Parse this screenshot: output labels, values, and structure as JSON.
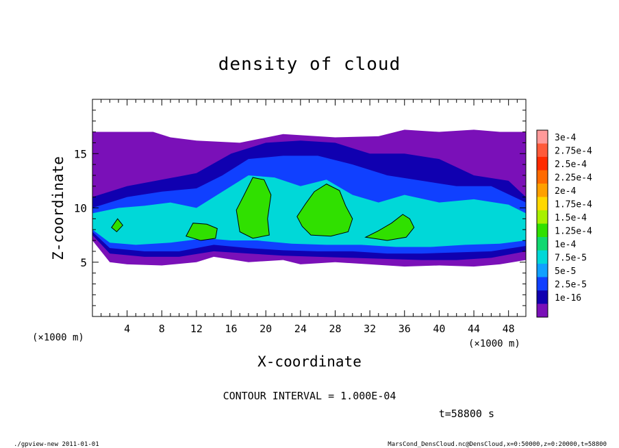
{
  "chart_data": {
    "type": "heatmap",
    "title": "density of cloud",
    "xlabel": "X-coordinate",
    "ylabel": "Z-coordinate",
    "x_unit_left": "(×1000 m)",
    "x_unit_right": "(×1000 m)",
    "xlim": [
      0,
      50
    ],
    "ylim": [
      0,
      20
    ],
    "x_ticks": [
      4,
      8,
      12,
      16,
      20,
      24,
      28,
      32,
      36,
      40,
      44,
      48
    ],
    "y_ticks": [
      5,
      10,
      15
    ],
    "colorbar": {
      "labels": [
        "3e-4",
        "2.75e-4",
        "2.5e-4",
        "2.25e-4",
        "2e-4",
        "1.75e-4",
        "1.5e-4",
        "1.25e-4",
        "1e-4",
        "7.5e-5",
        "5e-5",
        "2.5e-5",
        "1e-16"
      ],
      "colors": [
        "#ff9a9a",
        "#ff5a3a",
        "#ff2a00",
        "#ff6a00",
        "#ffa000",
        "#ffd800",
        "#a8f000",
        "#30e000",
        "#10d870",
        "#00d8d8",
        "#10a0ff",
        "#1040ff",
        "#1000b0",
        "#7a10b8"
      ]
    },
    "cloud_layers": [
      {
        "level": "1e-16",
        "color": "#7a10b8",
        "top": [
          [
            0,
            17
          ],
          [
            7,
            17
          ],
          [
            9,
            16.5
          ],
          [
            12,
            16.2
          ],
          [
            17,
            16
          ],
          [
            22,
            16.8
          ],
          [
            28,
            16.5
          ],
          [
            33,
            16.6
          ],
          [
            36,
            17.2
          ],
          [
            40,
            17
          ],
          [
            44,
            17.2
          ],
          [
            47,
            17
          ],
          [
            50,
            17
          ]
        ],
        "bottom": [
          [
            0,
            7
          ],
          [
            2,
            5
          ],
          [
            4,
            4.8
          ],
          [
            8,
            4.7
          ],
          [
            12,
            5
          ],
          [
            14,
            5.5
          ],
          [
            18,
            5
          ],
          [
            22,
            5.2
          ],
          [
            24,
            4.8
          ],
          [
            28,
            5
          ],
          [
            32,
            4.8
          ],
          [
            36,
            4.6
          ],
          [
            40,
            4.7
          ],
          [
            44,
            4.6
          ],
          [
            47,
            4.8
          ],
          [
            50,
            5.2
          ]
        ]
      },
      {
        "level": "2.5e-5",
        "color": "#1000b0",
        "top": [
          [
            0,
            11
          ],
          [
            4,
            12
          ],
          [
            8,
            12.6
          ],
          [
            12,
            13.2
          ],
          [
            16,
            15
          ],
          [
            20,
            16
          ],
          [
            24,
            16.2
          ],
          [
            28,
            16
          ],
          [
            32,
            15
          ],
          [
            36,
            15
          ],
          [
            40,
            14.5
          ],
          [
            44,
            13
          ],
          [
            48,
            12.5
          ],
          [
            50,
            11
          ]
        ],
        "bottom": [
          [
            0,
            7.5
          ],
          [
            2,
            5.8
          ],
          [
            6,
            5.5
          ],
          [
            10,
            5.5
          ],
          [
            14,
            6
          ],
          [
            18,
            5.8
          ],
          [
            22,
            5.6
          ],
          [
            26,
            5.5
          ],
          [
            30,
            5.4
          ],
          [
            34,
            5.3
          ],
          [
            38,
            5.2
          ],
          [
            42,
            5.2
          ],
          [
            46,
            5.4
          ],
          [
            50,
            6
          ]
        ]
      },
      {
        "level": "5e-5",
        "color": "#1040ff",
        "top": [
          [
            0,
            10
          ],
          [
            4,
            11
          ],
          [
            8,
            11.5
          ],
          [
            12,
            11.8
          ],
          [
            15,
            13
          ],
          [
            18,
            14.5
          ],
          [
            22,
            14.8
          ],
          [
            26,
            14.8
          ],
          [
            30,
            14
          ],
          [
            34,
            13
          ],
          [
            38,
            12.5
          ],
          [
            42,
            12
          ],
          [
            46,
            12
          ],
          [
            50,
            10.5
          ]
        ],
        "bottom": [
          [
            0,
            7.8
          ],
          [
            2,
            6.3
          ],
          [
            6,
            6
          ],
          [
            10,
            6
          ],
          [
            14,
            6.6
          ],
          [
            18,
            6.3
          ],
          [
            22,
            6.1
          ],
          [
            26,
            6
          ],
          [
            30,
            6
          ],
          [
            34,
            5.8
          ],
          [
            38,
            5.8
          ],
          [
            42,
            5.9
          ],
          [
            46,
            6
          ],
          [
            50,
            6.5
          ]
        ]
      },
      {
        "level": "7.5e-5",
        "color": "#00d8d8",
        "top": [
          [
            0,
            9.5
          ],
          [
            3,
            10
          ],
          [
            6,
            10.2
          ],
          [
            9,
            10.5
          ],
          [
            12,
            10
          ],
          [
            15,
            11.5
          ],
          [
            18,
            13
          ],
          [
            21,
            12.8
          ],
          [
            24,
            12
          ],
          [
            27,
            12.6
          ],
          [
            30,
            11.2
          ],
          [
            33,
            10.5
          ],
          [
            36,
            11.2
          ],
          [
            40,
            10.5
          ],
          [
            44,
            10.8
          ],
          [
            48,
            10.3
          ],
          [
            50,
            9.5
          ]
        ],
        "bottom": [
          [
            0,
            8
          ],
          [
            2,
            6.8
          ],
          [
            5,
            6.6
          ],
          [
            9,
            6.8
          ],
          [
            13,
            7.2
          ],
          [
            16,
            7
          ],
          [
            19,
            7
          ],
          [
            23,
            6.7
          ],
          [
            27,
            6.6
          ],
          [
            31,
            6.6
          ],
          [
            35,
            6.4
          ],
          [
            39,
            6.4
          ],
          [
            43,
            6.6
          ],
          [
            47,
            6.7
          ],
          [
            50,
            7
          ]
        ]
      },
      {
        "level": "1.25e-4",
        "color": "#30e000",
        "blobs": [
          [
            [
              16.6,
              9.8
            ],
            [
              17.5,
              11.2
            ],
            [
              18.5,
              12.8
            ],
            [
              19.8,
              12.6
            ],
            [
              20.6,
              11.2
            ],
            [
              20.2,
              9
            ],
            [
              20.4,
              7.5
            ],
            [
              18.5,
              7.2
            ],
            [
              17,
              7.8
            ]
          ],
          [
            [
              23.6,
              9.2
            ],
            [
              24.6,
              10.4
            ],
            [
              25.6,
              11.5
            ],
            [
              27,
              12.2
            ],
            [
              28.5,
              11.6
            ],
            [
              29.2,
              10.2
            ],
            [
              30,
              9
            ],
            [
              29.5,
              7.8
            ],
            [
              27.5,
              7.4
            ],
            [
              25.2,
              7.5
            ],
            [
              24.2,
              8.3
            ]
          ],
          [
            [
              31.5,
              7.3
            ],
            [
              33,
              7.9
            ],
            [
              34.5,
              8.6
            ],
            [
              35.8,
              9.4
            ],
            [
              36.6,
              9
            ],
            [
              37.1,
              8.2
            ],
            [
              36.2,
              7.3
            ],
            [
              34,
              7
            ]
          ],
          [
            [
              10.8,
              7.4
            ],
            [
              11.6,
              8.6
            ],
            [
              13.2,
              8.5
            ],
            [
              14.4,
              8.1
            ],
            [
              14.2,
              7.2
            ],
            [
              12.5,
              7
            ]
          ],
          [
            [
              2.2,
              8.2
            ],
            [
              2.9,
              9
            ],
            [
              3.5,
              8.4
            ],
            [
              2.8,
              7.8
            ]
          ]
        ]
      }
    ]
  },
  "contour_interval": "CONTOUR INTERVAL = 1.000E-04",
  "time_label": "t=58800 s",
  "footer_left": "./gpview-new  2011-01-01",
  "footer_right": "MarsCond_DensCloud.nc@DensCloud,x=0:50000,z=0:20000,t=58800"
}
